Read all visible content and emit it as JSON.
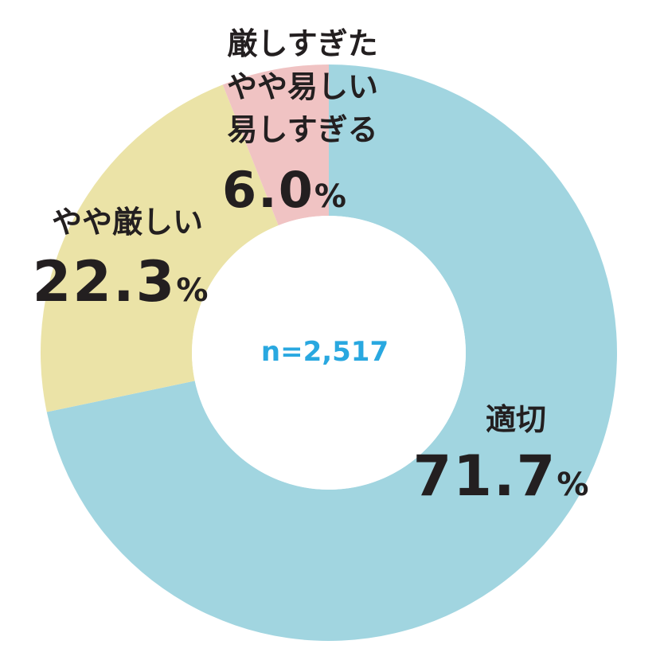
{
  "chart_data": {
    "type": "pie",
    "donut": true,
    "center_label": "n=2,517",
    "categories": [
      "適切",
      "やや厳しい",
      "厳しすぎた／やや易しい／易しすぎる"
    ],
    "label_lines": [
      [
        "適切"
      ],
      [
        "やや厳しい"
      ],
      [
        "厳しすぎた",
        "やや易しい",
        "易しすぎる"
      ]
    ],
    "values": [
      71.7,
      22.3,
      6.0
    ],
    "value_text": [
      "71.7",
      "22.3",
      "6.0"
    ],
    "unit": "%",
    "colors": [
      "#a1d5e0",
      "#ebe3a7",
      "#f0c3c3"
    ],
    "center_label_color": "#29a8e0"
  }
}
